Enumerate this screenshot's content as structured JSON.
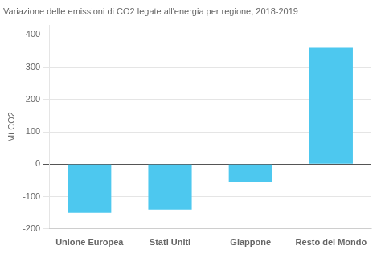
{
  "chart_data": {
    "type": "bar",
    "title": "Variazione delle emissioni di CO2 legate all'energia per regione, 2018-2019",
    "ylabel": "Mt CO2",
    "categories": [
      "Unione Europea",
      "Stati Uniti",
      "Giappone",
      "Resto del Mondo"
    ],
    "values": [
      -150,
      -140,
      -55,
      360
    ],
    "color": "#4DC8EF",
    "ylim": [
      -200,
      430
    ],
    "yticks": [
      -200,
      -100,
      0,
      100,
      200,
      300,
      400
    ],
    "grid": true
  }
}
